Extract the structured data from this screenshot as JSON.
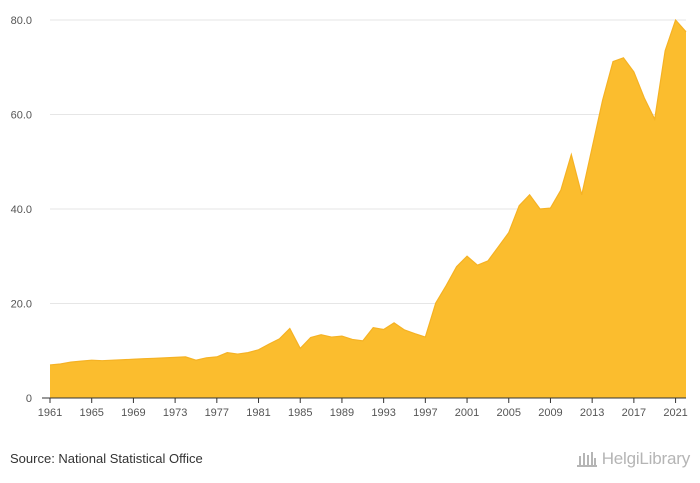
{
  "chart_data": {
    "type": "area",
    "title": "",
    "xlabel": "",
    "ylabel": "",
    "x": [
      1961,
      1962,
      1963,
      1964,
      1965,
      1966,
      1967,
      1968,
      1969,
      1970,
      1971,
      1972,
      1973,
      1974,
      1975,
      1976,
      1977,
      1978,
      1979,
      1980,
      1981,
      1982,
      1983,
      1984,
      1985,
      1986,
      1987,
      1988,
      1989,
      1990,
      1991,
      1992,
      1993,
      1994,
      1995,
      1996,
      1997,
      1998,
      1999,
      2000,
      2001,
      2002,
      2003,
      2004,
      2005,
      2006,
      2007,
      2008,
      2009,
      2010,
      2011,
      2012,
      2013,
      2014,
      2015,
      2016,
      2017,
      2018,
      2019,
      2020,
      2021,
      2022
    ],
    "values": [
      7.0,
      7.2,
      7.6,
      7.8,
      8.0,
      7.9,
      8.0,
      8.1,
      8.2,
      8.3,
      8.4,
      8.5,
      8.6,
      8.7,
      8.0,
      8.5,
      8.7,
      9.6,
      9.3,
      9.6,
      10.2,
      11.4,
      12.5,
      14.7,
      10.5,
      12.8,
      13.4,
      12.9,
      13.1,
      12.4,
      12.1,
      14.9,
      14.5,
      15.9,
      14.4,
      13.6,
      12.9,
      20.1,
      23.8,
      27.8,
      30.0,
      28.1,
      29.0,
      32.0,
      35.0,
      40.7,
      43.0,
      40.0,
      40.2,
      44.0,
      51.5,
      43.0,
      53.0,
      63.0,
      71.2,
      72.0,
      69.0,
      63.5,
      59.0,
      73.5,
      80.0,
      77.5
    ],
    "xticks": [
      "1961",
      "1965",
      "1969",
      "1973",
      "1977",
      "1981",
      "1985",
      "1989",
      "1993",
      "1997",
      "2001",
      "2005",
      "2009",
      "2013",
      "2017",
      "2021"
    ],
    "yticks": [
      "0",
      "20.0",
      "40.0",
      "60.0",
      "80.0"
    ],
    "xlim": [
      1961,
      2022
    ],
    "ylim": [
      0,
      80
    ],
    "grid": true,
    "legend": "none",
    "fill_color": "#fbbd2e",
    "line_color": "#f5b224"
  },
  "footer": {
    "source": "Source: National Statistical Office",
    "brand": "HelgiLibrary"
  },
  "colors": {
    "grid": "#e6e6e6",
    "axis": "#333333",
    "tick_text": "#555555",
    "brand": "#b5b5b5"
  }
}
